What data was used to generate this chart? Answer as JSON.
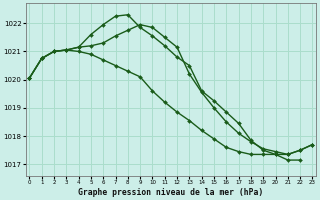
{
  "title": "Graphe pression niveau de la mer (hPa)",
  "bg_color": "#cceee8",
  "grid_color": "#aaddcc",
  "line_color": "#1a5c1a",
  "series": [
    {
      "x": [
        0,
        1,
        2,
        3,
        4,
        5,
        6,
        7,
        8,
        9,
        10,
        11,
        12,
        13,
        14,
        15,
        16,
        17,
        18,
        19,
        20,
        21,
        22
      ],
      "y": [
        1020.05,
        1020.75,
        1021.0,
        1021.05,
        1021.15,
        1021.6,
        1021.95,
        1022.25,
        1022.3,
        1021.85,
        1021.55,
        1021.2,
        1020.8,
        1020.5,
        1019.6,
        1019.25,
        1018.85,
        1018.45,
        1017.85,
        1017.5,
        1017.35,
        1017.15,
        1017.15
      ]
    },
    {
      "x": [
        0,
        1,
        2,
        3,
        4,
        5,
        6,
        7,
        8,
        9,
        10,
        11,
        12,
        13,
        14,
        15,
        16,
        17,
        18,
        19,
        20,
        21,
        22,
        23
      ],
      "y": [
        1020.05,
        1020.75,
        1021.0,
        1021.05,
        1021.15,
        1021.2,
        1021.3,
        1021.55,
        1021.75,
        1021.95,
        1021.85,
        1021.5,
        1021.15,
        1020.2,
        1019.55,
        1019.0,
        1018.5,
        1018.1,
        1017.8,
        1017.55,
        1017.45,
        1017.35,
        1017.5,
        1017.7
      ]
    },
    {
      "x": [
        0,
        1,
        2,
        3,
        4,
        5,
        6,
        7,
        8,
        9,
        10,
        11,
        12,
        13,
        14,
        15,
        16,
        17,
        18,
        19,
        20,
        21,
        22,
        23
      ],
      "y": [
        1020.05,
        1020.75,
        1021.0,
        1021.05,
        1021.0,
        1020.9,
        1020.7,
        1020.5,
        1020.3,
        1020.1,
        1019.6,
        1019.2,
        1018.85,
        1018.55,
        1018.2,
        1017.9,
        1017.6,
        1017.45,
        1017.35,
        1017.35,
        1017.35,
        1017.35,
        1017.5,
        1017.7
      ]
    }
  ],
  "xlim": [
    -0.3,
    23.3
  ],
  "ylim": [
    1016.6,
    1022.7
  ],
  "yticks": [
    1017,
    1018,
    1019,
    1020,
    1021,
    1022
  ],
  "xticks": [
    0,
    1,
    2,
    3,
    4,
    5,
    6,
    7,
    8,
    9,
    10,
    11,
    12,
    13,
    14,
    15,
    16,
    17,
    18,
    19,
    20,
    21,
    22,
    23
  ],
  "marker": "D",
  "marker_size": 2.0,
  "line_width": 1.0
}
